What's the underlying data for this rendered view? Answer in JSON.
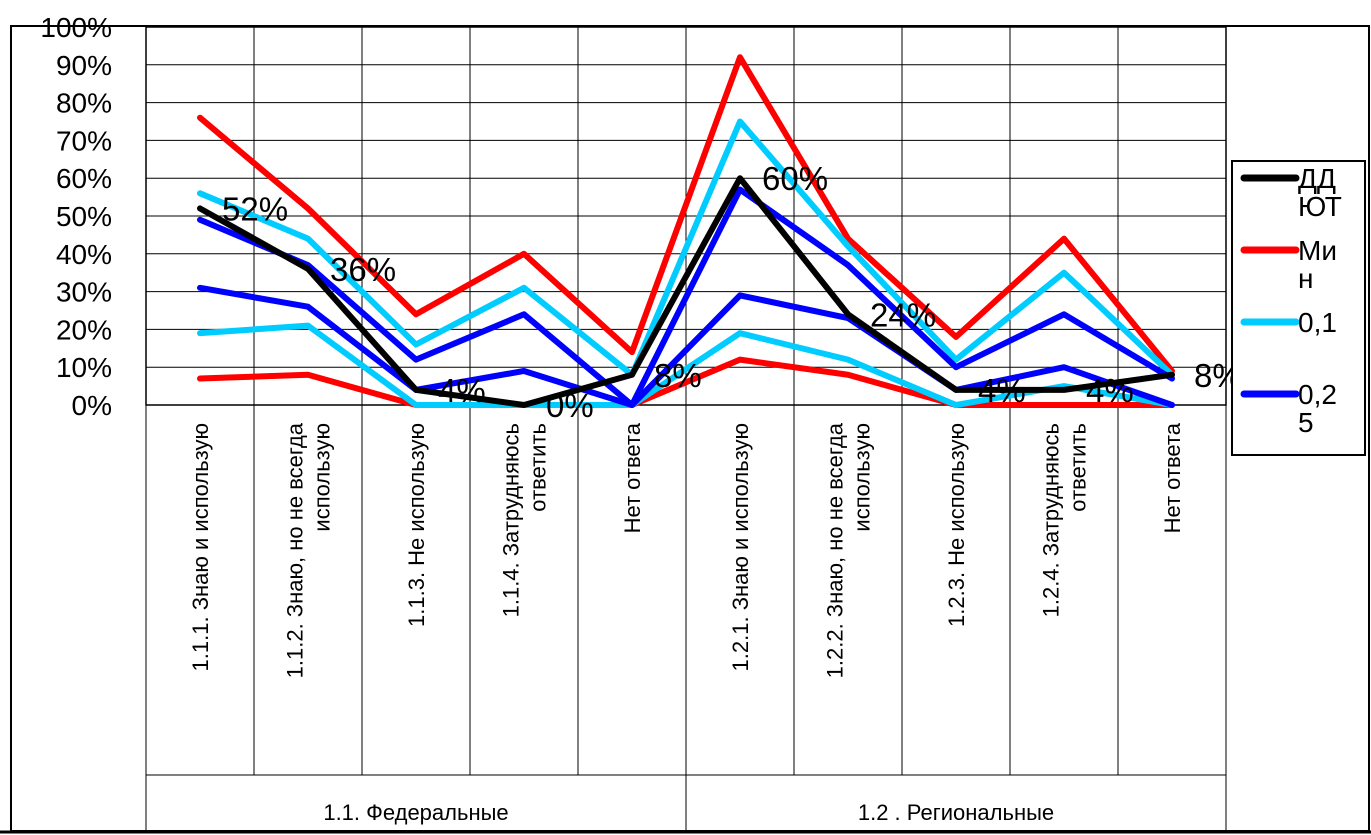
{
  "chart_data": {
    "type": "line",
    "ylim": [
      0,
      100
    ],
    "yticks": [
      "0%",
      "10%",
      "20%",
      "30%",
      "40%",
      "50%",
      "60%",
      "70%",
      "80%",
      "90%",
      "100%"
    ],
    "categories": [
      [
        "1.1.1. Знаю и использую"
      ],
      [
        "1.1.2. Знаю, но не всегда",
        "использую"
      ],
      [
        "1.1.3. Не использую"
      ],
      [
        "1.1.4. Затрудняюсь",
        "ответить"
      ],
      [
        "Нет ответа"
      ],
      [
        "1.2.1. Знаю и использую"
      ],
      [
        "1.2.2. Знаю, но не всегда",
        "использую"
      ],
      [
        "1.2.3. Не использую"
      ],
      [
        "1.2.4. Затрудняюсь",
        "ответить"
      ],
      [
        "Нет ответа"
      ]
    ],
    "groups": [
      {
        "label": "1.1. Федеральные",
        "span": [
          0,
          4
        ]
      },
      {
        "label": "1.2 . Региональные",
        "span": [
          5,
          9
        ]
      }
    ],
    "series": [
      {
        "name": "ДДЮТ",
        "legend_lines": [
          "ДД",
          "ЮТ"
        ],
        "color": "#000000",
        "values": [
          52,
          36,
          4,
          0,
          8,
          60,
          24,
          4,
          4,
          8
        ]
      },
      {
        "name": "Мин",
        "legend_lines": [
          "Ми",
          "н"
        ],
        "color": "#ff0000",
        "values": [
          76,
          52,
          24,
          40,
          14,
          92,
          44,
          18,
          44,
          9
        ]
      },
      {
        "name": "",
        "legend_lines": [],
        "color": "#ff0000",
        "values": [
          7,
          8,
          0,
          0,
          0,
          12,
          8,
          0,
          0,
          0
        ]
      },
      {
        "name": "0,1",
        "legend_lines": [
          "0,1"
        ],
        "color": "#00ccff",
        "values": [
          56,
          44,
          16,
          31,
          8,
          75,
          42,
          12,
          35,
          8
        ]
      },
      {
        "name": "",
        "legend_lines": [],
        "color": "#00ccff",
        "values": [
          19,
          21,
          0,
          0,
          0,
          19,
          12,
          0,
          5,
          0
        ]
      },
      {
        "name": "0,25",
        "legend_lines": [
          "0,2",
          "5"
        ],
        "color": "#0000ff",
        "values": [
          49,
          37,
          12,
          24,
          0,
          57,
          37,
          10,
          24,
          7
        ]
      },
      {
        "name": "",
        "legend_lines": [],
        "color": "#0000ff",
        "values": [
          31,
          26,
          4,
          9,
          0,
          29,
          23,
          4,
          10,
          0
        ]
      }
    ],
    "data_labels": [
      "52%",
      "36%",
      "4%",
      "0%",
      "8%",
      "60%",
      "24%",
      "4%",
      "4%",
      "8%"
    ],
    "legend_position": "right",
    "grid": true
  }
}
